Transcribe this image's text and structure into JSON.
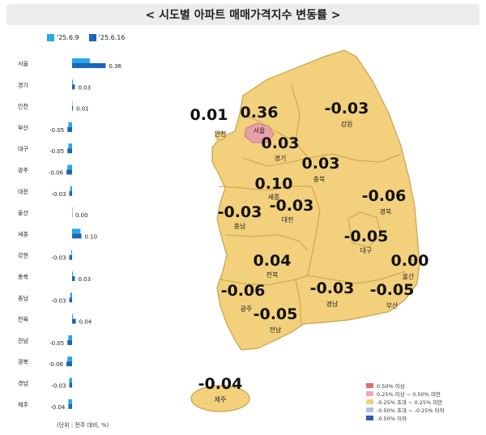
{
  "title": "< 시도별 아파트 매매가격지수 변동률 >",
  "colors": {
    "week1": "#29a8e6",
    "week2": "#1a66b8",
    "map_fill": "#f2d07c",
    "map_stroke": "#c9a24b",
    "seoul_fill": "#e8a0a8"
  },
  "legend": [
    {
      "label": "'25.6.9",
      "color": "#29a8e6"
    },
    {
      "label": "'25.6.16",
      "color": "#1a66b8"
    }
  ],
  "unit_note": "(단위 : 전주 대비, %)",
  "chart_data": {
    "type": "bar",
    "orientation": "horizontal",
    "categories": [
      "서울",
      "경기",
      "인천",
      "부산",
      "대구",
      "광주",
      "대전",
      "울산",
      "세종",
      "강원",
      "충북",
      "충남",
      "전북",
      "전남",
      "경북",
      "경남",
      "제주"
    ],
    "series": [
      {
        "name": "'25.6.9",
        "values": [
          0.19,
          0.01,
          0.0,
          -0.04,
          -0.04,
          -0.05,
          -0.02,
          0.0,
          0.09,
          -0.01,
          0.01,
          -0.02,
          0.01,
          -0.04,
          -0.05,
          -0.03,
          -0.04
        ]
      },
      {
        "name": "'25.6.16",
        "values": [
          0.36,
          0.03,
          0.01,
          -0.05,
          -0.05,
          -0.06,
          -0.03,
          0.0,
          0.1,
          -0.03,
          0.03,
          -0.03,
          0.04,
          -0.05,
          -0.06,
          -0.03,
          -0.04
        ]
      }
    ],
    "value_labels": [
      "0.36",
      "0.03",
      "0.01",
      "-0.05",
      "-0.05",
      "-0.06",
      "-0.03",
      "0.00",
      "0.10",
      "-0.03",
      "0.03",
      "-0.03",
      "0.04",
      "-0.05",
      "-0.06",
      "-0.03",
      "-0.04"
    ]
  },
  "map": {
    "regions": [
      {
        "name": "서울",
        "value": "0.36"
      },
      {
        "name": "인천",
        "value": "0.01"
      },
      {
        "name": "강원",
        "value": "-0.03"
      },
      {
        "name": "경기",
        "value": "0.03"
      },
      {
        "name": "충북",
        "value": "0.03"
      },
      {
        "name": "세종",
        "value": "0.10"
      },
      {
        "name": "충남",
        "value": "-0.03"
      },
      {
        "name": "대전",
        "value": "-0.03"
      },
      {
        "name": "경북",
        "value": "-0.06"
      },
      {
        "name": "대구",
        "value": "-0.05"
      },
      {
        "name": "울산",
        "value": "0.00"
      },
      {
        "name": "전북",
        "value": "0.04"
      },
      {
        "name": "광주",
        "value": "-0.06"
      },
      {
        "name": "경남",
        "value": "-0.03"
      },
      {
        "name": "부산",
        "value": "-0.05"
      },
      {
        "name": "전남",
        "value": "-0.05"
      },
      {
        "name": "제주",
        "value": "-0.04"
      }
    ],
    "legend": [
      {
        "label": "0.50% 이상",
        "color": "#e06b6b"
      },
      {
        "label": "0.25% 이상 ~ 0.50% 미만",
        "color": "#f0a8ae"
      },
      {
        "label": "-0.25% 초과 ~ 0.25% 미만",
        "color": "#f2d07c"
      },
      {
        "label": "-0.50% 초과 ~ -0.25% 이하",
        "color": "#a9c4e8"
      },
      {
        "label": "-0.50% 이하",
        "color": "#2c5fb0"
      }
    ]
  }
}
